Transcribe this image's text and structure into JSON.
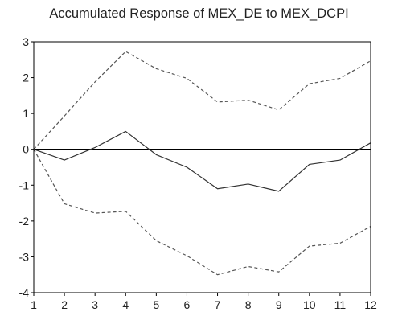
{
  "chart_data": {
    "type": "line",
    "title": "Accumulated Response of MEX_DE to MEX_DCPI",
    "xlabel": "",
    "ylabel": "",
    "x": [
      1,
      2,
      3,
      4,
      5,
      6,
      7,
      8,
      9,
      10,
      11,
      12
    ],
    "xlim": [
      1,
      12
    ],
    "ylim": [
      -4,
      3
    ],
    "yticks": [
      3,
      2,
      1,
      0,
      -1,
      -2,
      -3,
      -4
    ],
    "grid": false,
    "legend": "none",
    "zero_line": 0,
    "colors": {
      "response": "#333333",
      "band": "#555555",
      "zero": "#000000",
      "frame": "#000000"
    },
    "series": [
      {
        "role": "response",
        "style": "solid",
        "values": [
          0,
          -0.3,
          0.05,
          0.5,
          -0.15,
          -0.5,
          -1.1,
          -0.97,
          -1.17,
          -0.42,
          -0.3,
          0.18
        ]
      },
      {
        "role": "upper",
        "style": "dashed",
        "values": [
          0,
          0.93,
          1.88,
          2.73,
          2.25,
          1.98,
          1.32,
          1.37,
          1.1,
          1.83,
          1.98,
          2.47
        ]
      },
      {
        "role": "lower",
        "style": "dashed",
        "values": [
          0,
          -1.52,
          -1.78,
          -1.73,
          -2.55,
          -2.97,
          -3.5,
          -3.27,
          -3.42,
          -2.7,
          -2.62,
          -2.15
        ]
      }
    ]
  }
}
